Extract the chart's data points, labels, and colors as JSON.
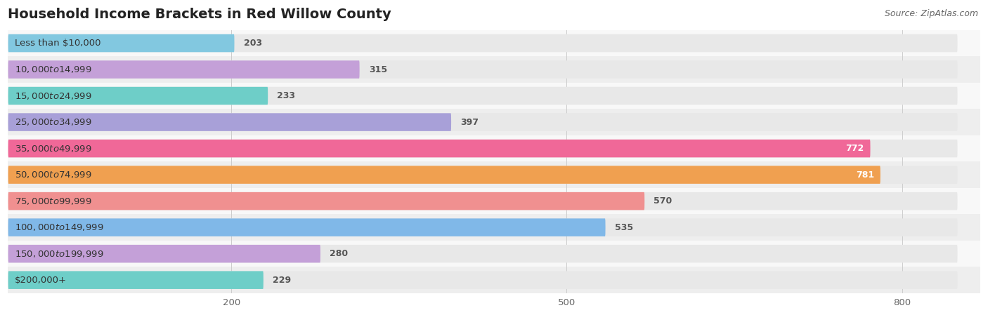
{
  "title": "Household Income Brackets in Red Willow County",
  "source": "Source: ZipAtlas.com",
  "categories": [
    "Less than $10,000",
    "$10,000 to $14,999",
    "$15,000 to $24,999",
    "$25,000 to $34,999",
    "$35,000 to $49,999",
    "$50,000 to $74,999",
    "$75,000 to $99,999",
    "$100,000 to $149,999",
    "$150,000 to $199,999",
    "$200,000+"
  ],
  "values": [
    203,
    315,
    233,
    397,
    772,
    781,
    570,
    535,
    280,
    229
  ],
  "bar_colors": [
    "#82c8e0",
    "#c4a0d8",
    "#6ecec8",
    "#a8a0d8",
    "#f06898",
    "#f0a050",
    "#f09090",
    "#80b8e8",
    "#c4a0d8",
    "#6ecec8"
  ],
  "bar_bg_color": "#e8e8e8",
  "background_color": "#ffffff",
  "row_bg_colors": [
    "#f8f8f8",
    "#eeeeee"
  ],
  "xlim": [
    0,
    870
  ],
  "data_max": 850,
  "xticks": [
    200,
    500,
    800
  ],
  "label_color_dark": "#555555",
  "label_color_light": "#ffffff",
  "title_fontsize": 14,
  "label_fontsize": 9.5,
  "value_fontsize": 9,
  "source_fontsize": 9,
  "value_threshold": 650
}
